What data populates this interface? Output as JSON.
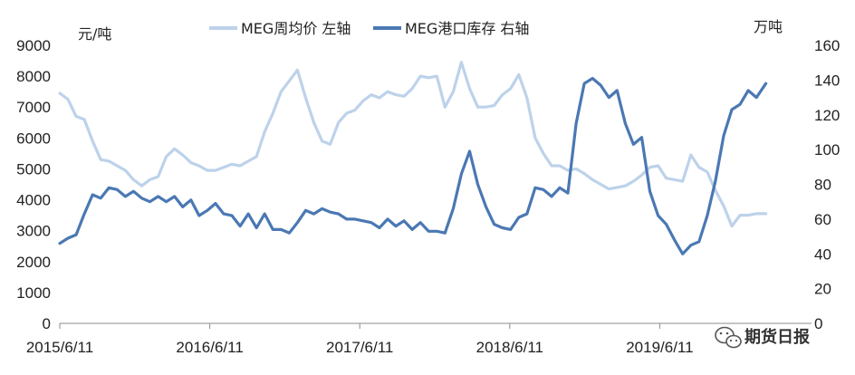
{
  "chart_data": {
    "type": "line",
    "left_axis": {
      "unit_label": "元/吨",
      "ylim": [
        0,
        9000
      ],
      "ticks": [
        "0",
        "1000",
        "2000",
        "3000",
        "4000",
        "5000",
        "6000",
        "7000",
        "8000",
        "9000"
      ]
    },
    "right_axis": {
      "unit_label": "万吨",
      "ylim": [
        0,
        160
      ],
      "ticks": [
        "0",
        "20",
        "40",
        "60",
        "80",
        "100",
        "120",
        "140",
        "160"
      ]
    },
    "x_tick_labels": [
      "2015/6/11",
      "2016/6/11",
      "2017/6/11",
      "2018/6/11",
      "2019/6/11"
    ],
    "x_range": [
      "2015-06-11",
      "2020-02-28"
    ],
    "series": [
      {
        "name": "MEG周均价 左轴",
        "axis": "left",
        "color": "#bdd2ea",
        "x": [
          "2015-06-11",
          "2015-07-01",
          "2015-07-21",
          "2015-08-10",
          "2015-08-30",
          "2015-09-19",
          "2015-10-09",
          "2015-10-29",
          "2015-11-18",
          "2015-12-08",
          "2015-12-28",
          "2016-01-17",
          "2016-02-06",
          "2016-02-26",
          "2016-03-17",
          "2016-04-06",
          "2016-04-26",
          "2016-05-16",
          "2016-06-05",
          "2016-06-25",
          "2016-07-15",
          "2016-08-04",
          "2016-08-24",
          "2016-09-13",
          "2016-10-03",
          "2016-10-23",
          "2016-11-12",
          "2016-12-02",
          "2016-12-22",
          "2017-01-11",
          "2017-01-31",
          "2017-02-20",
          "2017-03-12",
          "2017-04-01",
          "2017-04-21",
          "2017-05-11",
          "2017-05-31",
          "2017-06-20",
          "2017-07-10",
          "2017-07-30",
          "2017-08-19",
          "2017-09-08",
          "2017-09-28",
          "2017-10-18",
          "2017-11-07",
          "2017-11-27",
          "2017-12-17",
          "2018-01-06",
          "2018-01-26",
          "2018-02-15",
          "2018-03-07",
          "2018-03-27",
          "2018-04-16",
          "2018-05-06",
          "2018-05-26",
          "2018-06-15",
          "2018-07-05",
          "2018-07-25",
          "2018-08-14",
          "2018-09-03",
          "2018-09-23",
          "2018-10-13",
          "2018-11-02",
          "2018-11-22",
          "2018-12-12",
          "2019-01-01",
          "2019-01-21",
          "2019-02-10",
          "2019-03-02",
          "2019-03-22",
          "2019-04-11",
          "2019-05-01",
          "2019-05-21",
          "2019-06-10",
          "2019-06-30",
          "2019-07-20",
          "2019-08-09",
          "2019-08-29",
          "2019-09-18",
          "2019-10-08",
          "2019-10-28",
          "2019-11-17",
          "2019-12-07",
          "2019-12-27",
          "2020-01-16",
          "2020-02-05",
          "2020-02-28"
        ],
        "values": [
          7450,
          7250,
          6700,
          6600,
          5900,
          5300,
          5250,
          5100,
          4950,
          4650,
          4450,
          4650,
          4750,
          5400,
          5650,
          5450,
          5200,
          5100,
          4950,
          4950,
          5050,
          5150,
          5100,
          5250,
          5400,
          6200,
          6800,
          7500,
          7850,
          8200,
          7300,
          6500,
          5900,
          5800,
          6500,
          6800,
          6900,
          7200,
          7400,
          7300,
          7500,
          7400,
          7350,
          7600,
          8000,
          7950,
          8000,
          7000,
          7500,
          8450,
          7600,
          7000,
          7000,
          7050,
          7400,
          7600,
          8050,
          7300,
          6000,
          5500,
          5100,
          5100,
          4950,
          5000,
          4850,
          4650,
          4500,
          4350,
          4400,
          4450,
          4600,
          4800,
          5050,
          5100,
          4700,
          4650,
          4600,
          5450,
          5050,
          4900,
          4300,
          3800,
          3150,
          3500,
          3500,
          3550,
          3550
        ]
      },
      {
        "name": "MEG港口库存 右轴",
        "axis": "right",
        "color": "#4a78b3",
        "x": [
          "2015-06-11",
          "2015-07-01",
          "2015-07-21",
          "2015-08-10",
          "2015-08-30",
          "2015-09-19",
          "2015-10-09",
          "2015-10-29",
          "2015-11-18",
          "2015-12-08",
          "2015-12-28",
          "2016-01-17",
          "2016-02-06",
          "2016-02-26",
          "2016-03-17",
          "2016-04-06",
          "2016-04-26",
          "2016-05-16",
          "2016-06-05",
          "2016-06-25",
          "2016-07-15",
          "2016-08-04",
          "2016-08-24",
          "2016-09-13",
          "2016-10-03",
          "2016-10-23",
          "2016-11-12",
          "2016-12-02",
          "2016-12-22",
          "2017-01-11",
          "2017-01-31",
          "2017-02-20",
          "2017-03-12",
          "2017-04-01",
          "2017-04-21",
          "2017-05-11",
          "2017-05-31",
          "2017-06-20",
          "2017-07-10",
          "2017-07-30",
          "2017-08-19",
          "2017-09-08",
          "2017-09-28",
          "2017-10-18",
          "2017-11-07",
          "2017-11-27",
          "2017-12-17",
          "2018-01-06",
          "2018-01-26",
          "2018-02-15",
          "2018-03-07",
          "2018-03-27",
          "2018-04-16",
          "2018-05-06",
          "2018-05-26",
          "2018-06-15",
          "2018-07-05",
          "2018-07-25",
          "2018-08-14",
          "2018-09-03",
          "2018-09-23",
          "2018-10-13",
          "2018-11-02",
          "2018-11-22",
          "2018-12-12",
          "2019-01-01",
          "2019-01-21",
          "2019-02-10",
          "2019-03-02",
          "2019-03-22",
          "2019-04-11",
          "2019-05-01",
          "2019-05-21",
          "2019-06-10",
          "2019-06-30",
          "2019-07-20",
          "2019-08-09",
          "2019-08-29",
          "2019-09-18",
          "2019-10-08",
          "2019-10-28",
          "2019-11-17",
          "2019-12-07",
          "2019-12-27",
          "2020-01-16",
          "2020-02-05",
          "2020-02-28"
        ],
        "values": [
          46,
          49,
          51,
          63,
          74,
          72,
          78,
          77,
          73,
          76,
          72,
          70,
          73,
          70,
          73,
          67,
          71,
          62,
          65,
          69,
          63,
          62,
          56,
          63,
          55,
          63,
          54,
          54,
          52,
          58,
          65,
          63,
          66,
          64,
          63,
          60,
          60,
          59,
          58,
          55,
          60,
          56,
          59,
          54,
          58,
          53,
          53,
          52,
          66,
          86,
          99,
          80,
          67,
          57,
          55,
          54,
          61,
          63,
          78,
          77,
          73,
          78,
          75,
          115,
          138,
          141,
          137,
          130,
          134,
          115,
          103,
          107,
          76,
          62,
          57,
          48,
          40,
          45,
          47,
          62,
          82,
          108,
          123,
          126,
          134,
          130,
          138
        ]
      }
    ]
  },
  "watermark": {
    "text": "期货日报",
    "icon": "wechat-icon"
  }
}
